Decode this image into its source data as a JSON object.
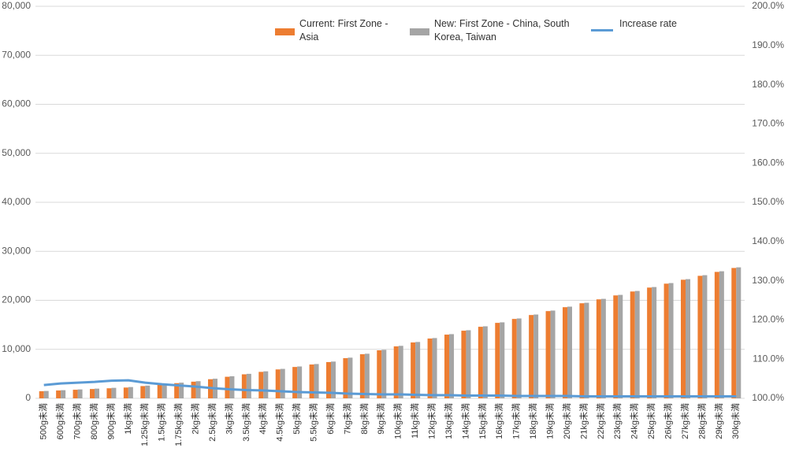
{
  "chart_data": {
    "type": "bar_line",
    "categories": [
      "500g未満",
      "600g未満",
      "700g未満",
      "800g未満",
      "900g未満",
      "1kg未満",
      "1.25kg未満",
      "1.5kg未満",
      "1.75kg未満",
      "2kg未満",
      "2.5kg未満",
      "3kg未満",
      "3.5kg未満",
      "4kg未満",
      "4.5kg未満",
      "5kg未満",
      "5.5kg未満",
      "6kg未満",
      "7kg未満",
      "8kg未満",
      "9kg未満",
      "10kg未満",
      "11kg未満",
      "12kg未満",
      "13kg未満",
      "14kg未満",
      "15kg未満",
      "16kg未満",
      "17kg未満",
      "18kg未満",
      "19kg未満",
      "20kg未満",
      "21kg未満",
      "22kg未満",
      "23kg未満",
      "24kg未満",
      "25kg未満",
      "26kg未満",
      "27kg未満",
      "28kg未満",
      "29kg未満",
      "30kg未満"
    ],
    "series": [
      {
        "name": "Current: First Zone - Asia",
        "type": "bar",
        "color": "#ed7d31",
        "values": [
          1450,
          1600,
          1750,
          1900,
          2050,
          2200,
          2500,
          2800,
          3100,
          3400,
          3900,
          4400,
          4900,
          5400,
          5900,
          6400,
          6900,
          7400,
          8200,
          9000,
          9800,
          10600,
          11400,
          12200,
          13000,
          13800,
          14600,
          15400,
          16200,
          17000,
          17800,
          18600,
          19400,
          20200,
          21000,
          21800,
          22600,
          23400,
          24200,
          25000,
          25800,
          26600
        ]
      },
      {
        "name": "New: First Zone - China, South Korea, Taiwan",
        "type": "bar",
        "color": "#a5a5a5",
        "values": [
          1500,
          1660,
          1820,
          1980,
          2140,
          2300,
          2600,
          2900,
          3200,
          3500,
          4000,
          4500,
          5000,
          5510,
          6010,
          6500,
          7000,
          7500,
          8300,
          9100,
          9900,
          10710,
          11500,
          12300,
          13100,
          13900,
          14700,
          15510,
          16300,
          17100,
          17910,
          18710,
          19500,
          20300,
          21110,
          21910,
          22710,
          23520,
          24320,
          25130,
          25930,
          26730
        ]
      },
      {
        "name": "Increase rate",
        "type": "line",
        "axis": "y2",
        "color": "#5b9bd5",
        "values": [
          103.4,
          103.8,
          104.0,
          104.2,
          104.5,
          104.6,
          104.0,
          103.6,
          103.3,
          103.0,
          102.6,
          102.3,
          102.1,
          102.0,
          101.8,
          101.6,
          101.5,
          101.4,
          101.2,
          101.1,
          101.0,
          101.0,
          100.9,
          100.8,
          100.8,
          100.7,
          100.7,
          100.7,
          100.6,
          100.6,
          100.6,
          100.6,
          100.5,
          100.5,
          100.5,
          100.5,
          100.5,
          100.5,
          100.5,
          100.5,
          100.5,
          100.5
        ]
      }
    ],
    "ylim": [
      0,
      80000
    ],
    "yticks": [
      0,
      {
        "value": 10000,
        "label": "10,000"
      },
      {
        "value": 20000,
        "label": "20,000"
      },
      {
        "value": 30000,
        "label": "30,000"
      },
      {
        "value": 40000,
        "label": "40,000"
      },
      {
        "value": 50000,
        "label": "50,000"
      },
      {
        "value": 60000,
        "label": "60,000"
      },
      {
        "value": 70000,
        "label": "70,000"
      },
      {
        "value": 80000,
        "label": "80,000"
      }
    ],
    "y2lim": [
      100,
      200
    ],
    "y2ticks": [
      {
        "value": 100,
        "label": "100.0%"
      },
      {
        "value": 110,
        "label": "110.0%"
      },
      {
        "value": 120,
        "label": "120.0%"
      },
      {
        "value": 130,
        "label": "130.0%"
      },
      {
        "value": 140,
        "label": "140.0%"
      },
      {
        "value": 150,
        "label": "150.0%"
      },
      {
        "value": 160,
        "label": "160.0%"
      },
      {
        "value": 170,
        "label": "170.0%"
      },
      {
        "value": 180,
        "label": "180.0%"
      },
      {
        "value": 190,
        "label": "190.0%"
      },
      {
        "value": 200,
        "label": "200.0%"
      }
    ],
    "grid": true,
    "legend": "top"
  }
}
